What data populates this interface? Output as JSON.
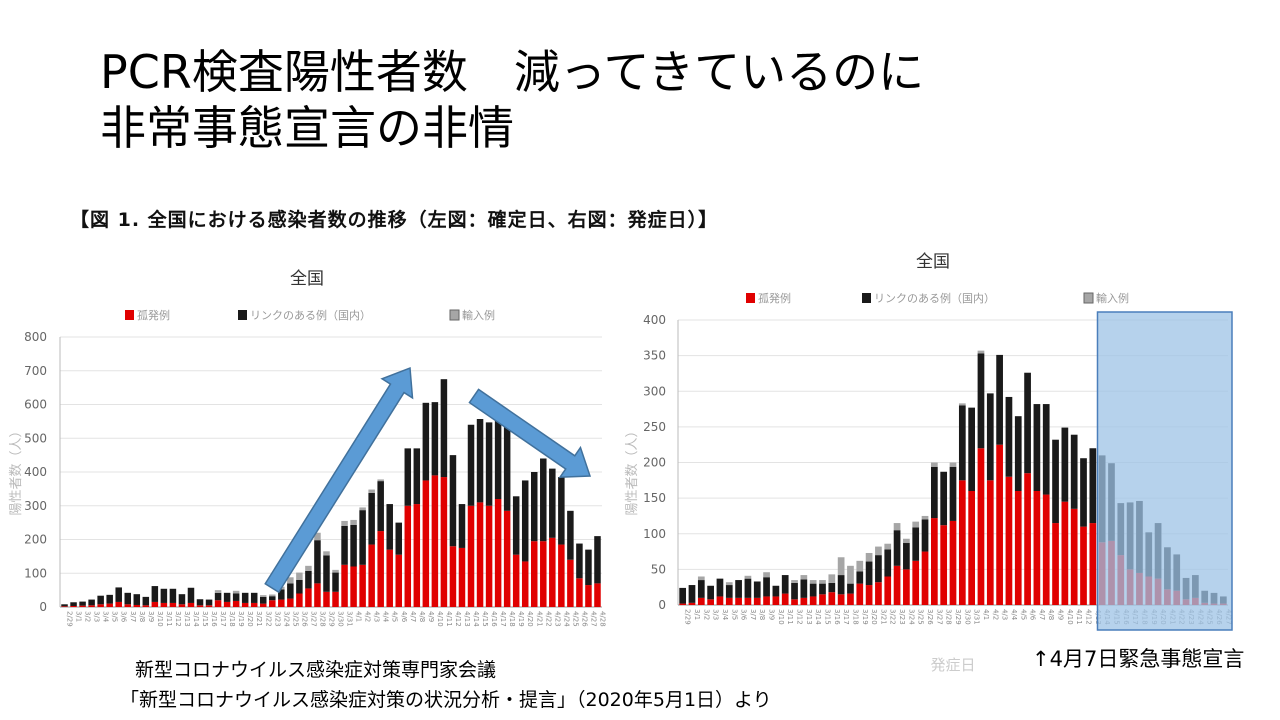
{
  "slide": {
    "title_line1": "PCR検査陽性者数　減ってきているのに",
    "title_line2": "非常事態宣言の非情",
    "figure_caption": "【図 1.  全国における感染者数の推移（左図：確定日、右図：発症日）】",
    "source_line1": "新型コロナウイルス感染症対策専門家会議",
    "source_line2": "「新型コロナウイルス感染症対策の状況分析・提言」（2020年5月1日）より",
    "annotation": "↑4月7日緊急事態宣言",
    "colors": {
      "red": "#e00000",
      "black": "#1a1a1a",
      "gray": "#a6a6a6",
      "arrow": "#5b9bd5",
      "highlight": "#9dc3e6"
    }
  },
  "chart_data": [
    {
      "type": "bar",
      "stacked": true,
      "title": "全国",
      "xlabel": "",
      "ylabel": "陽性者数（人）",
      "ylim": [
        0,
        800
      ],
      "yticks": [
        0,
        100,
        200,
        300,
        400,
        500,
        600,
        700,
        800
      ],
      "grid": true,
      "legend": [
        "孤発例",
        "リンクのある例（国内）",
        "輸入例"
      ],
      "legend_placement": "top",
      "categories": [
        "2/29",
        "3/1",
        "3/2",
        "3/3",
        "3/4",
        "3/5",
        "3/6",
        "3/7",
        "3/8",
        "3/9",
        "3/10",
        "3/11",
        "3/12",
        "3/13",
        "3/14",
        "3/15",
        "3/16",
        "3/17",
        "3/18",
        "3/19",
        "3/20",
        "3/21",
        "3/22",
        "3/23",
        "3/24",
        "3/25",
        "3/26",
        "3/27",
        "3/28",
        "3/29",
        "3/30",
        "3/31",
        "4/1",
        "4/2",
        "4/3",
        "4/4",
        "4/5",
        "4/6",
        "4/7",
        "4/8",
        "4/9",
        "4/10",
        "4/11",
        "4/12",
        "4/13",
        "4/14",
        "4/15",
        "4/16",
        "4/17",
        "4/18",
        "4/19",
        "4/20",
        "4/21",
        "4/22",
        "4/23",
        "4/24",
        "4/25",
        "4/26",
        "4/27",
        "4/28"
      ],
      "series": [
        {
          "name": "孤発例",
          "values": [
            2,
            3,
            4,
            5,
            8,
            10,
            15,
            8,
            6,
            5,
            15,
            12,
            12,
            8,
            12,
            5,
            5,
            20,
            15,
            18,
            12,
            12,
            10,
            20,
            22,
            25,
            40,
            55,
            70,
            45,
            45,
            125,
            120,
            125,
            185,
            225,
            170,
            155,
            300,
            305,
            375,
            390,
            385,
            180,
            175,
            300,
            310,
            300,
            320,
            285,
            155,
            135,
            195,
            195,
            205,
            185,
            140,
            85,
            65,
            70
          ]
        },
        {
          "name": "リンクのある例（国内）",
          "values": [
            6,
            11,
            12,
            17,
            25,
            26,
            43,
            34,
            32,
            25,
            47,
            42,
            42,
            30,
            45,
            18,
            17,
            22,
            27,
            22,
            30,
            30,
            20,
            12,
            30,
            45,
            40,
            52,
            128,
            108,
            57,
            115,
            123,
            162,
            153,
            148,
            135,
            95,
            170,
            165,
            230,
            217,
            290,
            270,
            130,
            240,
            247,
            247,
            232,
            260,
            173,
            240,
            205,
            245,
            205,
            200,
            145,
            103,
            105,
            140
          ]
        },
        {
          "name": "輸入例",
          "values": [
            0,
            0,
            0,
            0,
            2,
            0,
            0,
            0,
            0,
            0,
            0,
            0,
            0,
            0,
            0,
            0,
            0,
            8,
            0,
            8,
            0,
            0,
            5,
            5,
            8,
            18,
            22,
            15,
            22,
            12,
            8,
            15,
            15,
            8,
            10,
            5,
            0,
            0,
            0,
            0,
            0,
            0,
            0,
            0,
            0,
            0,
            0,
            0,
            0,
            0,
            0,
            0,
            0,
            0,
            0,
            0,
            0,
            0,
            0,
            0
          ]
        }
      ]
    },
    {
      "type": "bar",
      "stacked": true,
      "title": "全国",
      "xlabel": "発症日",
      "ylabel": "陽性者数（人）",
      "ylim": [
        0,
        400
      ],
      "yticks": [
        0,
        50,
        100,
        150,
        200,
        250,
        300,
        350,
        400
      ],
      "grid": true,
      "legend": [
        "孤発例",
        "リンクのある例（国内）",
        "輸入例"
      ],
      "legend_placement": "top",
      "highlight_from": "4/14",
      "categories": [
        "2/29",
        "3/1",
        "3/2",
        "3/3",
        "3/4",
        "3/5",
        "3/6",
        "3/7",
        "3/8",
        "3/9",
        "3/10",
        "3/11",
        "3/12",
        "3/13",
        "3/14",
        "3/15",
        "3/16",
        "3/17",
        "3/18",
        "3/19",
        "3/20",
        "3/21",
        "3/22",
        "3/23",
        "3/24",
        "3/25",
        "3/26",
        "3/27",
        "3/28",
        "3/29",
        "3/30",
        "3/31",
        "4/1",
        "4/2",
        "4/3",
        "4/4",
        "4/5",
        "4/6",
        "4/7",
        "4/8",
        "4/9",
        "4/10",
        "4/11",
        "4/12",
        "4/13",
        "4/14",
        "4/15",
        "4/16",
        "4/17",
        "4/18",
        "4/19",
        "4/20",
        "4/21",
        "4/22",
        "4/23",
        "4/24",
        "4/25",
        "4/26",
        "4/27"
      ],
      "series": [
        {
          "name": "孤発例",
          "values": [
            2,
            3,
            10,
            8,
            12,
            10,
            10,
            10,
            10,
            12,
            12,
            16,
            8,
            10,
            12,
            15,
            18,
            15,
            16,
            30,
            28,
            32,
            40,
            55,
            50,
            62,
            75,
            122,
            112,
            118,
            175,
            160,
            220,
            175,
            225,
            180,
            160,
            185,
            160,
            155,
            115,
            145,
            135,
            110,
            115,
            88,
            90,
            70,
            50,
            45,
            40,
            37,
            22,
            20,
            8,
            10,
            3,
            2,
            2
          ]
        },
        {
          "name": "リンクのある例（国内）",
          "values": [
            22,
            25,
            25,
            19,
            25,
            18,
            25,
            27,
            23,
            27,
            15,
            26,
            23,
            26,
            18,
            15,
            13,
            27,
            14,
            17,
            33,
            38,
            38,
            50,
            37,
            47,
            45,
            72,
            75,
            76,
            105,
            117,
            133,
            122,
            126,
            112,
            105,
            141,
            122,
            127,
            117,
            104,
            104,
            96,
            105,
            122,
            109,
            73,
            94,
            101,
            62,
            78,
            59,
            51,
            30,
            32,
            17,
            15,
            10
          ]
        },
        {
          "name": "輸入例",
          "values": [
            0,
            0,
            5,
            0,
            0,
            4,
            0,
            4,
            0,
            7,
            0,
            0,
            4,
            6,
            5,
            5,
            12,
            25,
            25,
            15,
            12,
            12,
            8,
            10,
            6,
            8,
            5,
            6,
            0,
            6,
            3,
            0,
            4,
            0,
            0,
            0,
            0,
            0,
            0,
            0,
            0,
            0,
            0,
            0,
            0,
            0,
            0,
            0,
            0,
            0,
            0,
            0,
            0,
            0,
            0,
            0,
            0,
            0,
            0
          ]
        }
      ]
    }
  ]
}
